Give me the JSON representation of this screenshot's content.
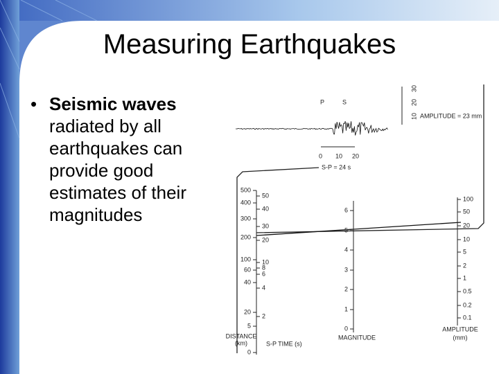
{
  "title": "Measuring Earthquakes",
  "bullet": {
    "lines": [
      "Seismic waves",
      "radiated by all",
      "earthquakes can",
      "provide good",
      "estimates of their",
      "magnitudes"
    ]
  },
  "figure": {
    "seismogram": {
      "p_label": "P",
      "s_label": "S",
      "amplitude_label": "AMPLITUDE = 23 mm",
      "sp_label": "S-P = 24 s",
      "time_ticks": [
        "0",
        "10",
        "20"
      ],
      "amplitude_ticks": [
        "10",
        "20",
        "30"
      ]
    },
    "distance_scale": {
      "label": "DISTANCE",
      "unit": "(km)",
      "ticks": [
        "500",
        "400",
        "300",
        "200",
        "100",
        "60",
        "40",
        "20",
        "5",
        "0"
      ]
    },
    "sp_scale": {
      "label": "S-P TIME (s)",
      "ticks": [
        "50",
        "40",
        "30",
        "20",
        "10",
        "8",
        "6",
        "4",
        "2"
      ]
    },
    "magnitude_scale": {
      "label": "MAGNITUDE",
      "ticks": [
        "6",
        "5",
        "4",
        "3",
        "2",
        "1",
        "0"
      ]
    },
    "amplitude_scale": {
      "label": "AMPLITUDE",
      "unit": "(mm)",
      "ticks": [
        "100",
        "50",
        "20",
        "10",
        "5",
        "2",
        "1",
        "0.5",
        "0.2",
        "0.1"
      ]
    }
  }
}
